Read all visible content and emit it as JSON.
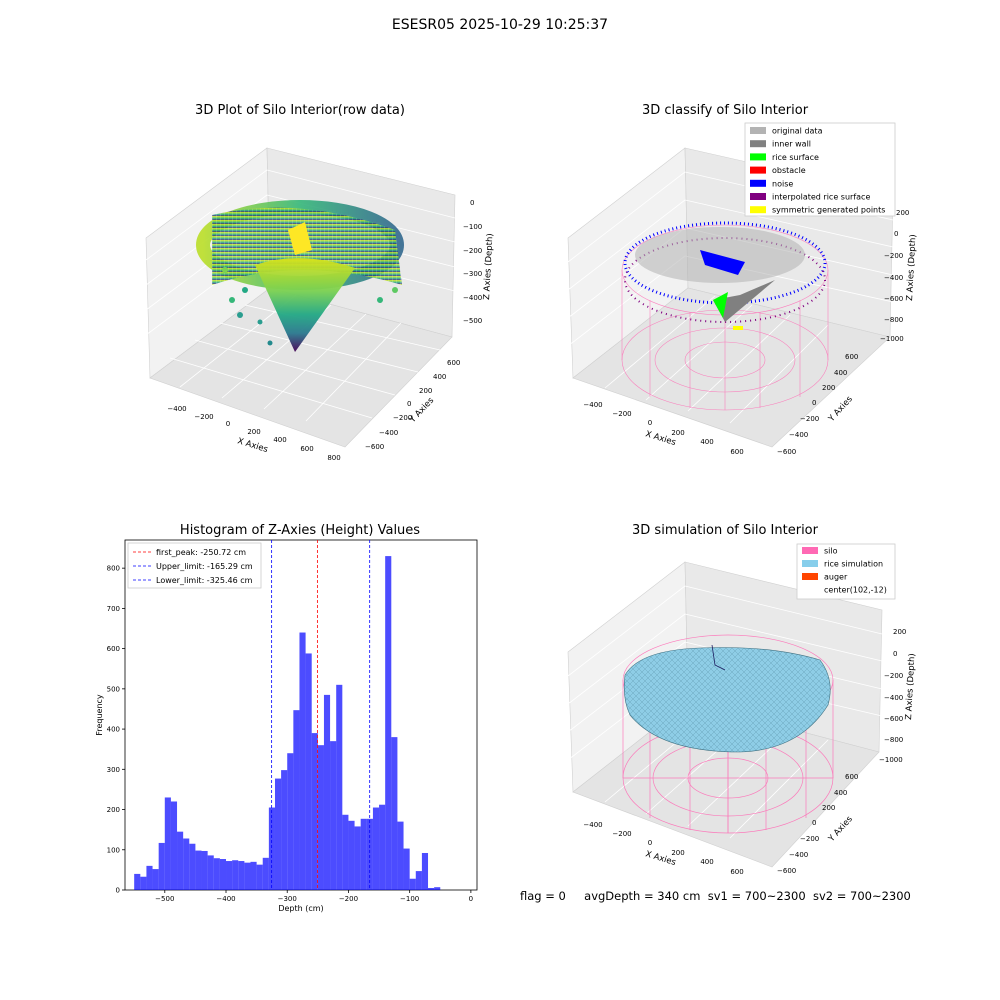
{
  "figure": {
    "suptitle": "ESESR05 2025-10-29 10:25:37",
    "footer": {
      "flag": "flag = 0",
      "avg_depth": "avgDepth = 340 cm",
      "sv1": "sv1 = 700~2300",
      "sv2": "sv2 = 700~2300"
    }
  },
  "panels": {
    "raw": {
      "title": "3D Plot of Silo Interior(row data)",
      "x_label": "X Axies",
      "y_label": "Y Axies",
      "z_label": "Z Axies (Depth)",
      "x_ticks": [
        "−400",
        "−200",
        "0",
        "200",
        "400",
        "600",
        "800"
      ],
      "y_ticks": [
        "600",
        "400",
        "200",
        "0",
        "−200",
        "−400",
        "−600"
      ],
      "z_ticks": [
        "0",
        "−100",
        "−200",
        "−300",
        "−400",
        "−500"
      ]
    },
    "classify": {
      "title": "3D classify of Silo Interior",
      "x_label": "X Axies",
      "y_label": "Y Axies",
      "z_label": "Z Axies (Depth)",
      "x_ticks": [
        "−400",
        "−200",
        "0",
        "200",
        "400",
        "600"
      ],
      "y_ticks": [
        "600",
        "400",
        "200",
        "0",
        "−200",
        "−400",
        "−600"
      ],
      "z_ticks": [
        "200",
        "0",
        "−200",
        "−400",
        "−600",
        "−800",
        "−1000"
      ],
      "legend": [
        {
          "label": "original data",
          "color": "#b3b3b3"
        },
        {
          "label": "inner wall",
          "color": "#808080"
        },
        {
          "label": "rice surface",
          "color": "#00ff00"
        },
        {
          "label": "obstacle",
          "color": "#ff0000"
        },
        {
          "label": "noise",
          "color": "#0000ff"
        },
        {
          "label": "interpolated rice surface",
          "color": "#800080"
        },
        {
          "label": "symmetric generated points",
          "color": "#ffff00"
        }
      ]
    },
    "simulation": {
      "title": "3D simulation of Silo Interior",
      "x_label": "X Axies",
      "y_label": "Y Axies",
      "z_label": "Z Axies (Depth)",
      "x_ticks": [
        "−400",
        "−200",
        "0",
        "200",
        "400",
        "600"
      ],
      "y_ticks": [
        "600",
        "400",
        "200",
        "0",
        "−200",
        "−400",
        "−600"
      ],
      "z_ticks": [
        "200",
        "0",
        "−200",
        "−400",
        "−600",
        "−800",
        "−1000"
      ],
      "legend": [
        {
          "label": "silo",
          "color": "#ff69b4"
        },
        {
          "label": "rice simulation",
          "color": "#87ceeb"
        },
        {
          "label": "auger",
          "color": "#ff4500"
        },
        {
          "label": "center(102,-12)",
          "color": ""
        }
      ]
    }
  },
  "chart_data": {
    "type": "bar",
    "title": "Histogram of Z-Axies (Height) Values",
    "xlabel": "Depth (cm)",
    "ylabel": "Frequency",
    "xlim": [
      -565,
      10
    ],
    "ylim": [
      0,
      870
    ],
    "x_ticks": [
      -500,
      -400,
      -300,
      -200,
      -100,
      0
    ],
    "y_ticks": [
      0,
      100,
      200,
      300,
      400,
      500,
      600,
      700,
      800
    ],
    "bin_start": -550,
    "bin_width": 10,
    "bar_color": "#0000ff",
    "values": [
      40,
      33,
      60,
      52,
      117,
      230,
      220,
      145,
      128,
      115,
      98,
      97,
      86,
      79,
      77,
      72,
      74,
      72,
      68,
      70,
      63,
      80,
      205,
      277,
      298,
      340,
      447,
      640,
      588,
      390,
      360,
      485,
      370,
      510,
      187,
      172,
      158,
      177,
      177,
      205,
      212,
      830,
      380,
      170,
      103,
      28,
      47,
      92,
      5,
      7
    ],
    "lines": [
      {
        "label": "first_peak: -250.72 cm",
        "x": -250.72,
        "color": "#ff0000"
      },
      {
        "label": "Upper_limit: -165.29 cm",
        "x": -165.29,
        "color": "#0000ff"
      },
      {
        "label": "Lower_limit: -325.46 cm",
        "x": -325.46,
        "color": "#0000ff"
      }
    ],
    "legend_position": "upper-left"
  }
}
